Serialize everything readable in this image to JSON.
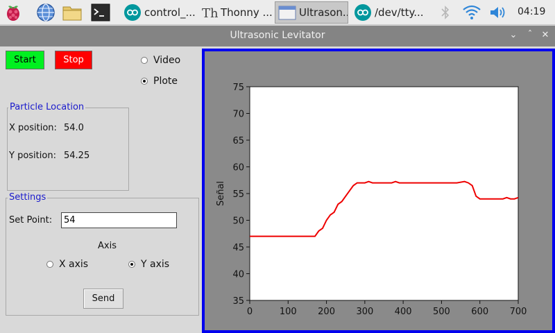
{
  "taskbar": {
    "tasks": [
      {
        "label": "control_...",
        "icon": "arduino-icon"
      },
      {
        "label": "Thonny  ...",
        "icon": "thonny-icon"
      },
      {
        "label": "Ultrason...",
        "icon": "window-icon"
      },
      {
        "label": "/dev/tty...",
        "icon": "arduino-icon"
      }
    ],
    "clock": "04:19"
  },
  "window": {
    "title": "Ultrasonic Levitator"
  },
  "controls": {
    "start_label": "Start",
    "stop_label": "Stop",
    "video_label": "Video",
    "plote_label": "Plote",
    "view_selected": "plote"
  },
  "particle_location": {
    "title": "Particle Location",
    "x_label": "X position:",
    "x_value": "54.0",
    "y_label": "Y position:",
    "y_value": "54.25"
  },
  "settings": {
    "title": "Settings",
    "setpoint_label": "Set Point:",
    "setpoint_value": "54",
    "axis_label": "Axis",
    "x_axis_label": "X axis",
    "y_axis_label": "Y axis",
    "axis_selected": "y",
    "send_label": "Send"
  },
  "colors": {
    "start": "#00f020",
    "stop": "#ff0000",
    "plot_border": "#0000ee",
    "line": "#ee0000",
    "legend": "#1a1acc"
  },
  "chart_data": {
    "type": "line",
    "ylabel": "Señal",
    "xlabel": "",
    "xlim": [
      0,
      700
    ],
    "ylim": [
      35,
      75
    ],
    "xticks": [
      0,
      100,
      200,
      300,
      400,
      500,
      600,
      700
    ],
    "yticks": [
      35,
      40,
      45,
      50,
      55,
      60,
      65,
      70,
      75
    ],
    "series": [
      {
        "x": [
          0,
          170,
          180,
          190,
          200,
          210,
          220,
          230,
          240,
          250,
          260,
          270,
          280,
          290,
          300,
          310,
          320,
          330,
          340,
          350,
          360,
          370,
          380,
          390,
          400,
          420,
          440,
          460,
          480,
          500,
          520,
          540,
          560,
          570,
          580,
          590,
          600,
          610,
          620,
          630,
          640,
          650,
          660,
          670,
          680,
          690,
          700
        ],
        "y": [
          47.0,
          47.0,
          48.0,
          48.5,
          50.0,
          51.0,
          51.5,
          53.0,
          53.5,
          54.5,
          55.5,
          56.5,
          57.0,
          57.0,
          57.0,
          57.25,
          57.0,
          57.0,
          57.0,
          57.0,
          57.0,
          57.0,
          57.25,
          57.0,
          57.0,
          57.0,
          57.0,
          57.0,
          57.0,
          57.0,
          57.0,
          57.0,
          57.25,
          57.0,
          56.5,
          54.5,
          54.0,
          54.0,
          54.0,
          54.0,
          54.0,
          54.0,
          54.0,
          54.25,
          54.0,
          54.0,
          54.25
        ]
      }
    ]
  }
}
